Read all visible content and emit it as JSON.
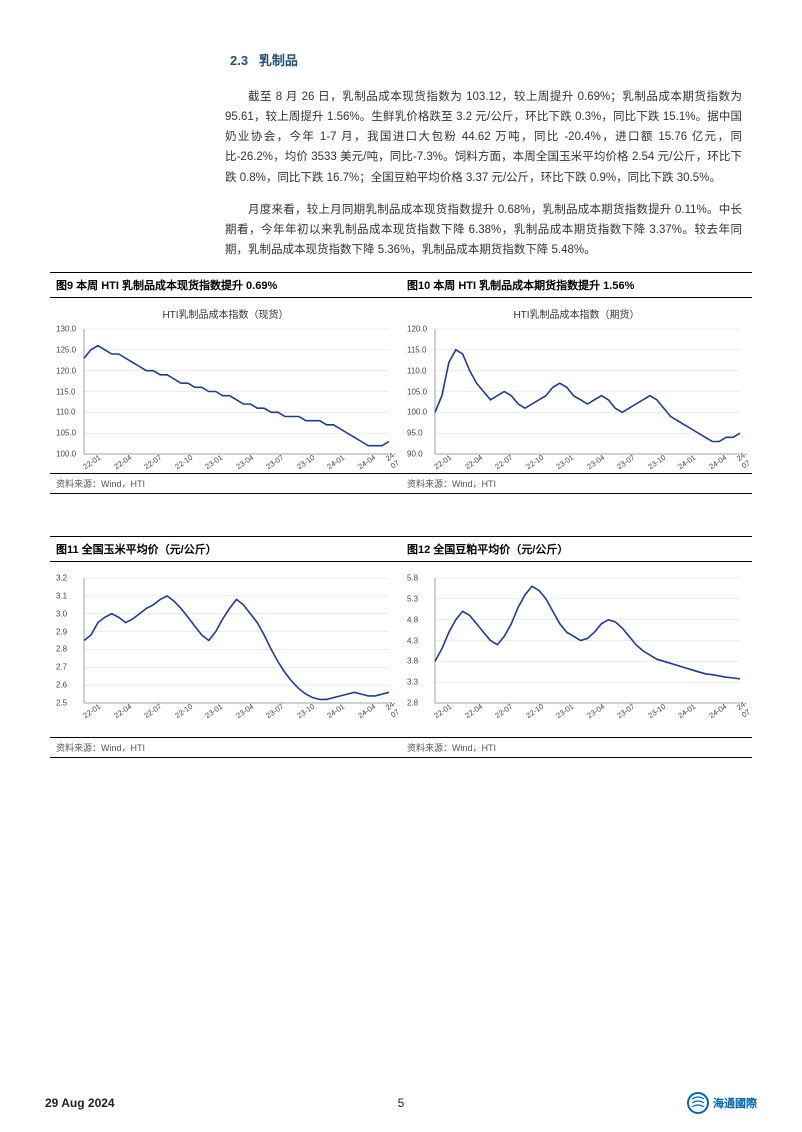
{
  "section": {
    "number": "2.3",
    "title": "乳制品"
  },
  "paragraphs": {
    "p1": "截至 8 月 26 日，乳制品成本现货指数为 103.12，较上周提升 0.69%；乳制品成本期货指数为 95.61，较上周提升 1.56%。生鲜乳价格跌至 3.2 元/公斤，环比下跌 0.3%，同比下跌 15.1%。据中国奶业协会，今年 1-7 月，我国进口大包粉 44.62 万吨，同比 -20.4%，进口额 15.76 亿元，同比-26.2%，均价 3533 美元/吨，同比-7.3%。饲料方面，本周全国玉米平均价格 2.54 元/公斤，环比下跌 0.8%，同比下跌 16.7%；全国豆粕平均价格 3.37 元/公斤，环比下跌 0.9%，同比下跌 30.5%。",
    "p2": "月度来看，较上月同期乳制品成本现货指数提升 0.68%，乳制品成本期货指数提升 0.11%。中长期看，今年年初以来乳制品成本现货指数下降 6.38%，乳制品成本期货指数下降 3.37%。较去年同期，乳制品成本现货指数下降 5.36%，乳制品成本期货指数下降 5.48%。"
  },
  "charts": {
    "chart9": {
      "type": "line",
      "title": "图9  本周 HTI 乳制品成本现货指数提升 0.69%",
      "subtitle": "HTI乳制品成本指数（现货）",
      "source": "资料来源：Wind，HTI",
      "line_color": "#1f3a93",
      "line_width": 1.6,
      "background_color": "#ffffff",
      "grid_color": "#d9d9d9",
      "tick_fontsize": 8,
      "ylim": [
        100,
        130
      ],
      "ytick_step": 5,
      "yticks": [
        "100.0",
        "105.0",
        "110.0",
        "115.0",
        "120.0",
        "125.0",
        "130.0"
      ],
      "xticks": [
        "22-01",
        "22-04",
        "22-07",
        "22-10",
        "23-01",
        "23-04",
        "23-07",
        "23-10",
        "24-01",
        "24-04",
        "24-07"
      ],
      "values": [
        123,
        125,
        126,
        125,
        124,
        124,
        123,
        122,
        121,
        120,
        120,
        119,
        119,
        118,
        117,
        117,
        116,
        116,
        115,
        115,
        114,
        114,
        113,
        112,
        112,
        111,
        111,
        110,
        110,
        109,
        109,
        109,
        108,
        108,
        108,
        107,
        107,
        106,
        105,
        104,
        103,
        102,
        102,
        102,
        103
      ]
    },
    "chart10": {
      "type": "line",
      "title": "图10 本周 HTI 乳制品成本期货指数提升 1.56%",
      "subtitle": "HTI乳制品成本指数（期货）",
      "source": "资料来源：Wind，HTI",
      "line_color": "#1f3a93",
      "line_width": 1.6,
      "background_color": "#ffffff",
      "grid_color": "#d9d9d9",
      "tick_fontsize": 8,
      "ylim": [
        90,
        120
      ],
      "ytick_step": 5,
      "yticks": [
        "90.0",
        "95.0",
        "100.0",
        "105.0",
        "110.0",
        "115.0",
        "120.0"
      ],
      "xticks": [
        "22-01",
        "22-04",
        "22-07",
        "22-10",
        "23-01",
        "23-04",
        "23-07",
        "23-10",
        "24-01",
        "24-04",
        "24-07"
      ],
      "values": [
        100,
        104,
        112,
        115,
        114,
        110,
        107,
        105,
        103,
        104,
        105,
        104,
        102,
        101,
        102,
        103,
        104,
        106,
        107,
        106,
        104,
        103,
        102,
        103,
        104,
        103,
        101,
        100,
        101,
        102,
        103,
        104,
        103,
        101,
        99,
        98,
        97,
        96,
        95,
        94,
        93,
        93,
        94,
        94,
        95
      ]
    },
    "chart11": {
      "type": "line",
      "title": "图11 全国玉米平均价（元/公斤）",
      "subtitle": "",
      "source": "资料来源：Wind，HTI",
      "line_color": "#1f3a93",
      "line_width": 1.6,
      "background_color": "#ffffff",
      "grid_color": "#d9d9d9",
      "tick_fontsize": 8,
      "ylim": [
        2.5,
        3.2
      ],
      "ytick_step": 0.1,
      "yticks": [
        "2.5",
        "2.6",
        "2.7",
        "2.8",
        "2.9",
        "3.0",
        "3.1",
        "3.2"
      ],
      "xticks": [
        "22-01",
        "22-04",
        "22-07",
        "22-10",
        "23-01",
        "23-04",
        "23-07",
        "23-10",
        "24-01",
        "24-04",
        "24-07"
      ],
      "values": [
        2.85,
        2.88,
        2.95,
        2.98,
        3.0,
        2.98,
        2.95,
        2.97,
        3.0,
        3.03,
        3.05,
        3.08,
        3.1,
        3.07,
        3.03,
        2.98,
        2.93,
        2.88,
        2.85,
        2.9,
        2.97,
        3.03,
        3.08,
        3.05,
        3.0,
        2.95,
        2.88,
        2.8,
        2.73,
        2.67,
        2.62,
        2.58,
        2.55,
        2.53,
        2.52,
        2.52,
        2.53,
        2.54,
        2.55,
        2.56,
        2.55,
        2.54,
        2.54,
        2.55,
        2.56
      ]
    },
    "chart12": {
      "type": "line",
      "title": "图12 全国豆粕平均价（元/公斤）",
      "subtitle": "",
      "source": "资料来源：Wind，HTI",
      "line_color": "#1f3a93",
      "line_width": 1.6,
      "background_color": "#ffffff",
      "grid_color": "#d9d9d9",
      "tick_fontsize": 8,
      "ylim": [
        2.8,
        5.8
      ],
      "ytick_step": 0.5,
      "yticks": [
        "2.8",
        "3.3",
        "3.8",
        "4.3",
        "4.8",
        "5.3",
        "5.8"
      ],
      "xticks": [
        "22-01",
        "22-04",
        "22-07",
        "22-10",
        "23-01",
        "23-04",
        "23-07",
        "23-10",
        "24-01",
        "24-04",
        "24-07"
      ],
      "values": [
        3.8,
        4.1,
        4.5,
        4.8,
        5.0,
        4.9,
        4.7,
        4.5,
        4.3,
        4.2,
        4.4,
        4.7,
        5.1,
        5.4,
        5.6,
        5.5,
        5.3,
        5.0,
        4.7,
        4.5,
        4.4,
        4.3,
        4.35,
        4.5,
        4.7,
        4.8,
        4.75,
        4.6,
        4.4,
        4.2,
        4.05,
        3.95,
        3.85,
        3.8,
        3.75,
        3.7,
        3.65,
        3.6,
        3.55,
        3.5,
        3.48,
        3.45,
        3.42,
        3.4,
        3.38
      ]
    }
  },
  "footer": {
    "date": "29 Aug 2024",
    "page": "5",
    "logo_text": "海通國際"
  }
}
